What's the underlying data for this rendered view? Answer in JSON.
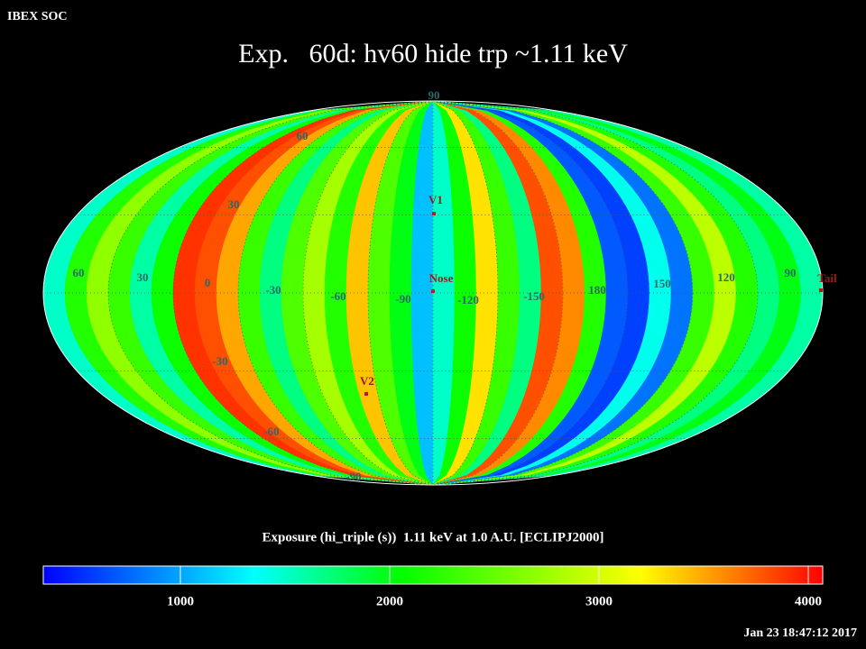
{
  "header": {
    "label": "IBEX SOC"
  },
  "title": "Exp.   60d: hv60 hide trp ~1.11 keV",
  "map": {
    "stripes": [
      1500,
      2200,
      2700,
      2300,
      1600,
      2100,
      3900,
      3800,
      3500,
      2300,
      1700,
      2400,
      2800,
      2200,
      3400,
      2400,
      2000,
      1100,
      1500,
      2100,
      3300,
      2300,
      1700,
      3800,
      3600,
      2200,
      700,
      600,
      1400,
      800,
      2300,
      2900,
      2200,
      1700,
      2000,
      1600
    ],
    "grid_labels": [
      "90",
      "60",
      "30",
      "60",
      "30",
      "0",
      "-30",
      "-60",
      "-90",
      "-120",
      "-150",
      "180",
      "150",
      "120",
      "90",
      "-30",
      "-60",
      "-90"
    ],
    "objects": [
      "V1",
      "Nose",
      "V2",
      "Tail"
    ]
  },
  "colorbar": {
    "title": "Exposure (hi_triple (s))  1.11 keV at 1.0 A.U. [ECLIPJ2000]",
    "lim": [
      345,
      4069
    ],
    "ticks": [
      1000,
      2000,
      3000,
      4000
    ],
    "colormap": [
      {
        "value": 345,
        "color": "#0000ff"
      },
      {
        "value": 1350,
        "color": "#00ffff"
      },
      {
        "value": 2050,
        "color": "#00ff00"
      },
      {
        "value": 3200,
        "color": "#ffff00"
      },
      {
        "value": 4069,
        "color": "#ff0000"
      }
    ]
  },
  "footer": {
    "timestamp": "Jan 23 18:47:12 2017"
  }
}
